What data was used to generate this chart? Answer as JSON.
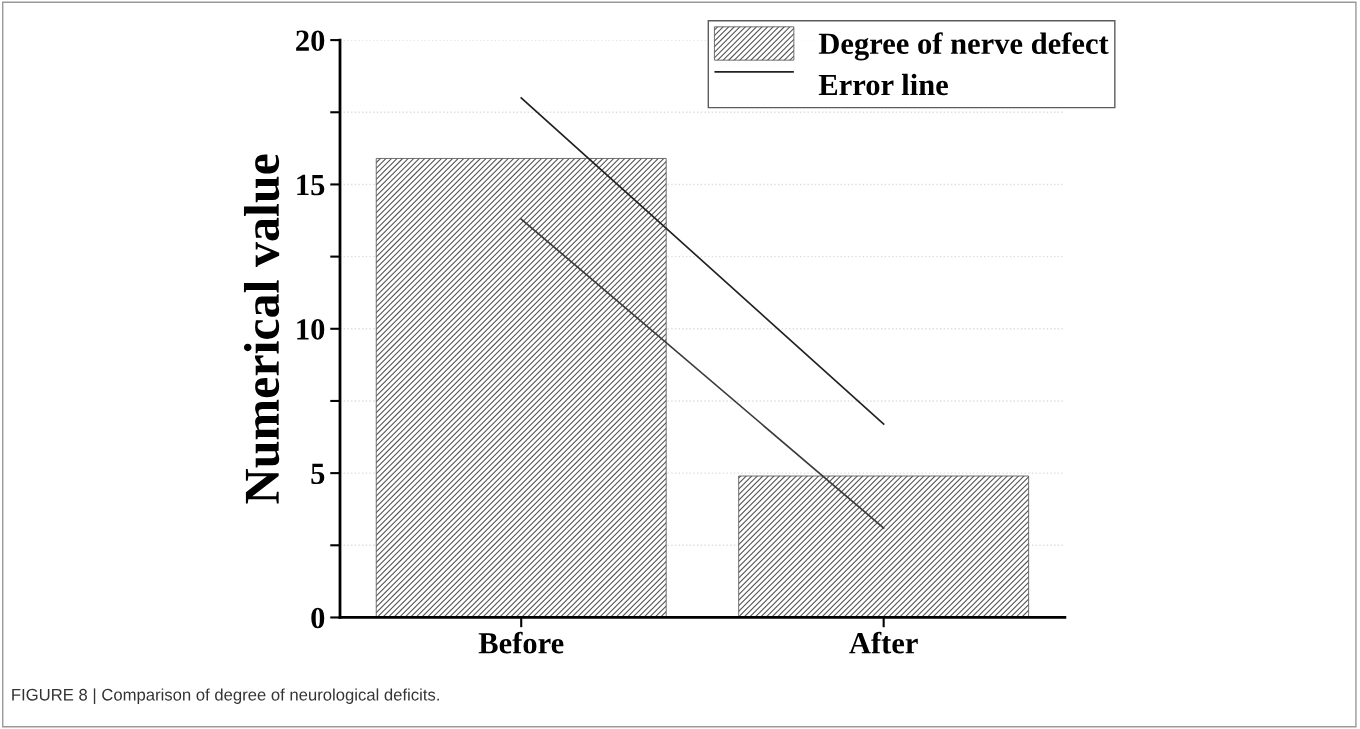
{
  "chart_data": {
    "type": "bar",
    "categories": [
      "Before",
      "After"
    ],
    "ylabel": "Numerical value",
    "ylim": [
      0,
      20
    ],
    "yticks": [
      0,
      {
        "value": 2.5,
        "label": null
      },
      5,
      {
        "value": 7.5,
        "label": null
      },
      10,
      {
        "value": 12.5,
        "label": null
      },
      15,
      {
        "value": 17.5,
        "label": null
      },
      20
    ],
    "grid": "y",
    "legend": "top right",
    "series": [
      {
        "name": "Degree of nerve defect",
        "color": "#555555",
        "values": [
          15.9,
          4.9
        ]
      },
      {
        "name": "Error line",
        "type": "line",
        "color": "#222222",
        "values": [
          18.0,
          6.7
        ]
      },
      {
        "type": "line",
        "color": "#3a3a3a",
        "values": [
          13.8,
          3.1
        ]
      }
    ],
    "annotations": [
      "FIGURE 8 | Comparison of degree of neurological deficits."
    ]
  }
}
